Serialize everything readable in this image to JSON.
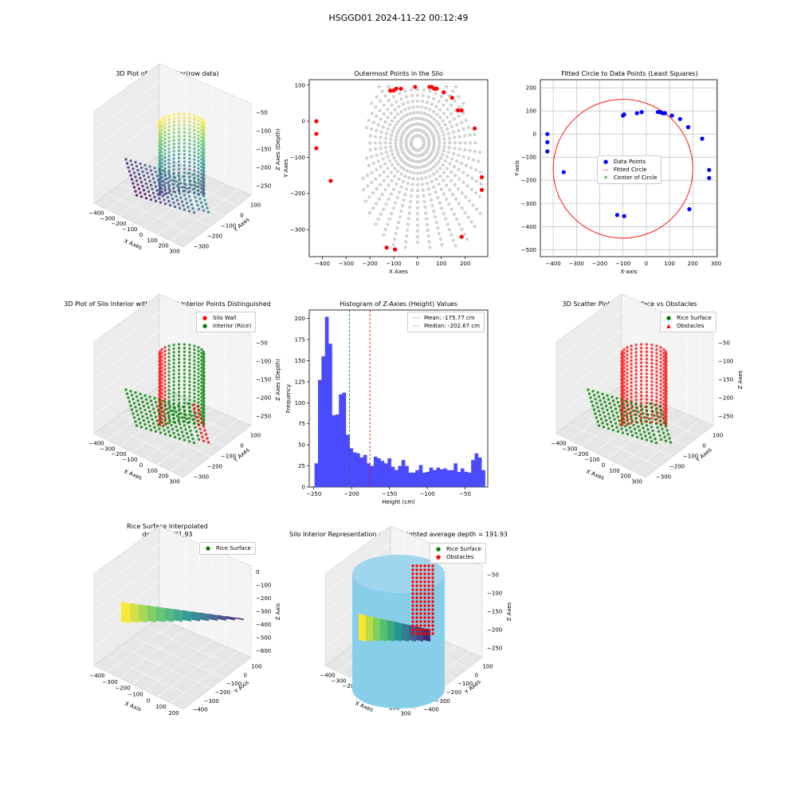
{
  "suptitle": "HSGGD01 2024-11-22 00:12:49",
  "colors": {
    "gray": "#d3d3d3",
    "red": "#ff0000",
    "blue": "#0000ff",
    "green": "#008000",
    "hist": "#4a4aff",
    "sky": "#87ceeb"
  },
  "p1": {
    "title": "3D Plot of Silo Interior(row data)",
    "xlabel": "X Axes",
    "ylabel": "Y Axes",
    "zlabel": "Z Axes (Depth)",
    "xticks": [
      "−400",
      "−300",
      "−200",
      "−100",
      "0",
      "100",
      "200",
      "300"
    ],
    "yticks": [
      "100",
      "0",
      "−100",
      "−200",
      "−300"
    ],
    "zticks": [
      "−50",
      "−100",
      "−150",
      "−200",
      "−250"
    ]
  },
  "p2": {
    "title": "Outermost Points in the Silo",
    "xlabel": "X Axes",
    "ylabel": "Y Axes",
    "xticks": [
      "−400",
      "−300",
      "−200",
      "−100",
      "0",
      "100",
      "200"
    ],
    "yticks": [
      "100",
      "0",
      "−100",
      "−200",
      "−300"
    ]
  },
  "p3": {
    "title": "Fitted Circle to Data Points (Least Squares)",
    "xlabel": "X-axis",
    "ylabel": "Y-axis",
    "xticks": [
      "−400",
      "−300",
      "−200",
      "−100",
      "0",
      "100",
      "200",
      "300"
    ],
    "yticks": [
      "200",
      "100",
      "0",
      "−100",
      "−200",
      "−300",
      "−400",
      "−500"
    ],
    "legend": [
      "Data Points",
      "Fitted Circle",
      "Center of Circle"
    ]
  },
  "p4": {
    "title": "3D Plot of Silo Interior with Wall and Interior Points Distinguished",
    "xlabel": "X Axes",
    "ylabel": "Y Axes",
    "zlabel": "Z Axes (Depth)",
    "xticks": [
      "−400",
      "−300",
      "−200",
      "−100",
      "0",
      "100",
      "200",
      "300"
    ],
    "yticks": [
      "100",
      "0",
      "−100",
      "−200",
      "−300"
    ],
    "zticks": [
      "−50",
      "−100",
      "−150",
      "−200",
      "−250"
    ],
    "legend": [
      "Silo Wall",
      "Interior (Rice)"
    ]
  },
  "p5": {
    "title": "Histogram of Z-Axies (Height) Values",
    "xlabel": "Height (cm)",
    "ylabel": "Frequency",
    "xticks": [
      "−250",
      "−200",
      "−150",
      "−100",
      "−50"
    ],
    "yticks": [
      "0",
      "25",
      "50",
      "75",
      "100",
      "125",
      "150",
      "175",
      "200"
    ],
    "legend": [
      "Mean: -175.77 cm",
      "Median: -202.67 cm"
    ]
  },
  "p6": {
    "title": "3D Scatter Plot: Rice Surface vs Obstacles",
    "xlabel": "X Axes",
    "ylabel": "Y Axes",
    "zlabel": "Z Axes",
    "xticks": [
      "−400",
      "−300",
      "−200",
      "−100",
      "0",
      "100",
      "200",
      "300"
    ],
    "yticks": [
      "100",
      "0",
      "−100",
      "−200",
      "−300"
    ],
    "zticks": [
      "−50",
      "−100",
      "−150",
      "−200",
      "−250"
    ],
    "legend": [
      "Rice Surface",
      "Obstacles"
    ]
  },
  "p7": {
    "title_line1": "Rice Surface Interpolated",
    "title_line2": "depth = 191.93",
    "xlabel": "X Axis",
    "ylabel": "Y Axis",
    "zlabel": "Z Axis",
    "xticks": [
      "−400",
      "−300",
      "−200",
      "−100",
      "0",
      "100",
      "200"
    ],
    "yticks": [
      "100",
      "0",
      "−100",
      "−200",
      "−300",
      "−400"
    ],
    "zticks": [
      "0",
      "−100",
      "−200",
      "−300",
      "−400",
      "−500",
      "−600"
    ],
    "legend": [
      "Rice Surface"
    ]
  },
  "p8": {
    "title": "Silo Interior Representation using weighted average depth = 191.93",
    "xlabel": "X Axes",
    "ylabel": "Y Axes",
    "zlabel": "Z Axes",
    "xticks": [
      "−400",
      "−300",
      "−200",
      "−100",
      "0",
      "100",
      "200",
      "300"
    ],
    "yticks": [
      "100",
      "0",
      "−100",
      "−200",
      "−300",
      "−400"
    ],
    "zticks": [
      "−50",
      "−100",
      "−150",
      "−200",
      "−250"
    ],
    "legend": [
      "Rice Surface",
      "Obstacles"
    ]
  },
  "chart_data": [
    {
      "type": "scatter",
      "panel": "p2",
      "xlim": [
        -455,
        295
      ],
      "ylim": [
        -375,
        115
      ],
      "outer_points": [
        [
          -425,
          0
        ],
        [
          -425,
          -35
        ],
        [
          -425,
          -75
        ],
        [
          -365,
          -165
        ],
        [
          -115,
          85
        ],
        [
          -100,
          85
        ],
        [
          -90,
          90
        ],
        [
          -70,
          90
        ],
        [
          -10,
          95
        ],
        [
          50,
          95
        ],
        [
          60,
          95
        ],
        [
          70,
          90
        ],
        [
          80,
          90
        ],
        [
          110,
          80
        ],
        [
          145,
          65
        ],
        [
          170,
          30
        ],
        [
          185,
          30
        ],
        [
          240,
          -20
        ],
        [
          270,
          -155
        ],
        [
          270,
          -190
        ],
        [
          185,
          -320
        ],
        [
          -130,
          -350
        ],
        [
          -95,
          -355
        ]
      ]
    },
    {
      "type": "scatter",
      "panel": "p3",
      "xlim": [
        -455,
        305
      ],
      "ylim": [
        -530,
        235
      ],
      "points": [
        [
          -425,
          0
        ],
        [
          -425,
          -35
        ],
        [
          -425,
          -75
        ],
        [
          -355,
          -165
        ],
        [
          -100,
          80
        ],
        [
          -95,
          85
        ],
        [
          -40,
          90
        ],
        [
          -20,
          95
        ],
        [
          50,
          95
        ],
        [
          60,
          95
        ],
        [
          70,
          90
        ],
        [
          80,
          90
        ],
        [
          110,
          80
        ],
        [
          145,
          65
        ],
        [
          180,
          30
        ],
        [
          240,
          -20
        ],
        [
          270,
          -155
        ],
        [
          270,
          -190
        ],
        [
          185,
          -325
        ],
        [
          -125,
          -350
        ],
        [
          -95,
          -355
        ]
      ],
      "circle": {
        "cx": -100,
        "cy": -150,
        "r": 300
      }
    },
    {
      "type": "bar",
      "panel": "p5",
      "xlim": [
        -256,
        -20
      ],
      "ylim": [
        0,
        210
      ],
      "bins": {
        "start": -249,
        "width": 4.6,
        "counts": [
          28,
          127,
          155,
          202,
          170,
          85,
          86,
          110,
          112,
          62,
          46,
          41,
          40,
          35,
          38,
          28,
          25,
          36,
          34,
          31,
          28,
          34,
          24,
          20,
          25,
          32,
          25,
          17,
          17,
          20,
          26,
          17,
          18,
          23,
          20,
          23,
          21,
          22,
          20,
          20,
          28,
          18,
          22,
          18,
          17,
          32,
          40,
          35,
          20
        ]
      },
      "mean": -175.77,
      "median": -202.67
    }
  ]
}
